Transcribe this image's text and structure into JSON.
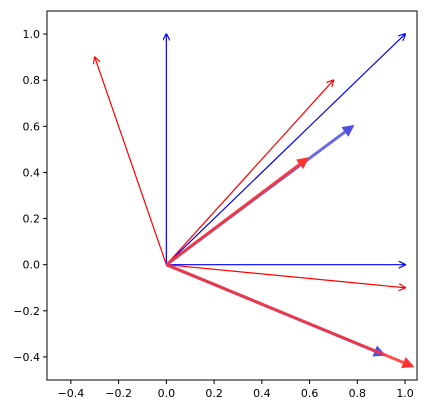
{
  "chart_data": {
    "type": "quiver",
    "title": "",
    "xlabel": "",
    "ylabel": "",
    "xlim": [
      -0.5,
      1.05
    ],
    "ylim": [
      -0.5,
      1.1
    ],
    "x_ticks": [
      "−0.4",
      "−0.2",
      "0.0",
      "0.2",
      "0.4",
      "0.6",
      "0.8",
      "1.0"
    ],
    "x_tick_values": [
      -0.4,
      -0.2,
      0.0,
      0.2,
      0.4,
      0.6,
      0.8,
      1.0
    ],
    "y_ticks": [
      "−0.4",
      "−0.2",
      "0.0",
      "0.2",
      "0.4",
      "0.6",
      "0.8",
      "1.0"
    ],
    "y_tick_values": [
      -0.4,
      -0.2,
      0.0,
      0.2,
      0.4,
      0.6,
      0.8,
      1.0
    ],
    "grid": false,
    "series": [
      {
        "color": "#0000ff",
        "vectors": [
          {
            "x0": 0,
            "y0": 0,
            "x1": 0.0,
            "y1": 1.0
          },
          {
            "x0": 0,
            "y0": 0,
            "x1": 1.0,
            "y1": 1.0
          },
          {
            "x0": 0,
            "y0": 0,
            "x1": 1.0,
            "y1": 0.0
          }
        ]
      },
      {
        "color": "#ff0000",
        "vectors": [
          {
            "x0": 0,
            "y0": 0,
            "x1": -0.3,
            "y1": 0.9
          },
          {
            "x0": 0,
            "y0": 0,
            "x1": 0.7,
            "y1": 0.8
          },
          {
            "x0": 0,
            "y0": 0,
            "x1": 1.0,
            "y1": -0.1
          }
        ]
      },
      {
        "color": "#5050e0",
        "width": "thick",
        "vectors": [
          {
            "x0": 0,
            "y0": 0,
            "x1": 0.78,
            "y1": 0.6
          },
          {
            "x0": 0,
            "y0": 0,
            "x1": 0.91,
            "y1": -0.39
          }
        ]
      },
      {
        "color": "#ff3030",
        "width": "thick",
        "vectors": [
          {
            "x0": 0,
            "y0": 0,
            "x1": 0.59,
            "y1": 0.46
          },
          {
            "x0": 0,
            "y0": 0,
            "x1": 1.03,
            "y1": -0.44
          }
        ]
      }
    ]
  }
}
